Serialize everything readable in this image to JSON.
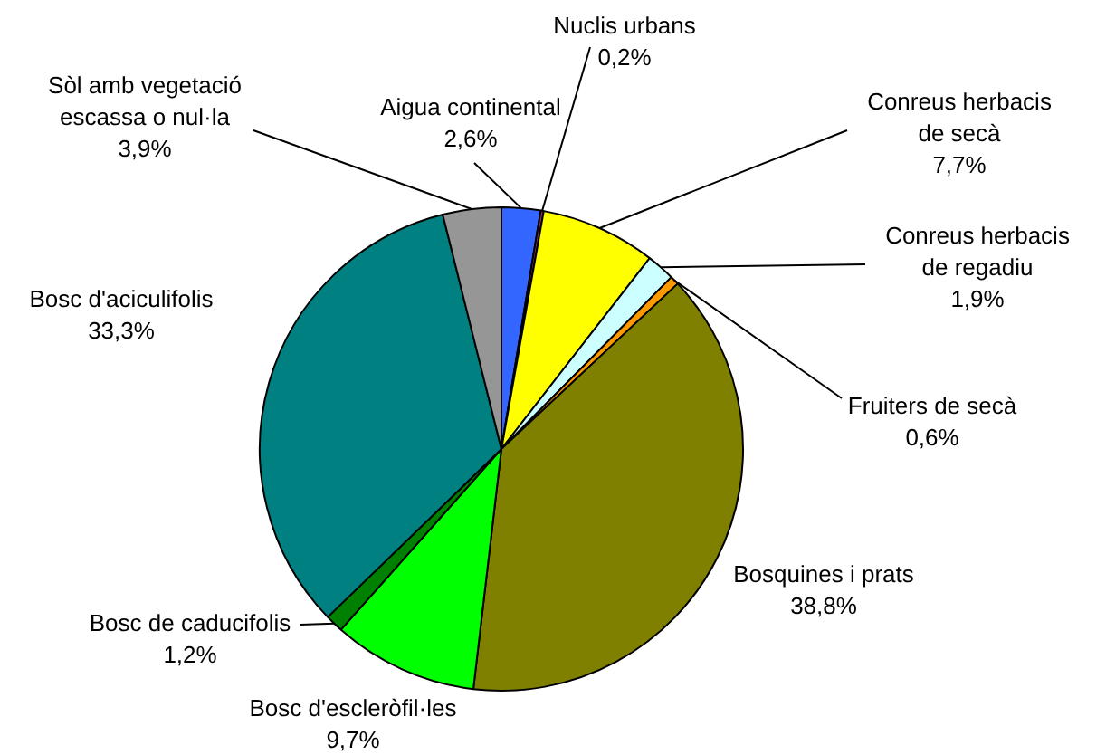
{
  "chart_data": {
    "type": "pie",
    "categories": [
      "Aigua continental",
      "Nuclis urbans",
      "Conreus herbacis de secà",
      "Conreus herbacis de regadiu",
      "Fruiters de secà",
      "Bosquines i prats",
      "Bosc d'escleròfil·les",
      "Bosc de caducifolis",
      "Bosc d'aciculifolis",
      "Sòl amb vegetació escassa o nul·la"
    ],
    "values": [
      2.6,
      0.2,
      7.7,
      1.9,
      0.6,
      38.8,
      9.7,
      1.2,
      33.3,
      3.9
    ],
    "value_labels": [
      "2,6%",
      "0,2%",
      "7,7%",
      "1,9%",
      "0,6%",
      "38,8%",
      "9,7%",
      "1,2%",
      "33,3%",
      "3,9%"
    ],
    "colors": [
      "#3366ff",
      "#993366",
      "#ffff00",
      "#ccffff",
      "#ff9900",
      "#808000",
      "#00ff00",
      "#008000",
      "#008080",
      "#969696"
    ],
    "legend": false
  }
}
